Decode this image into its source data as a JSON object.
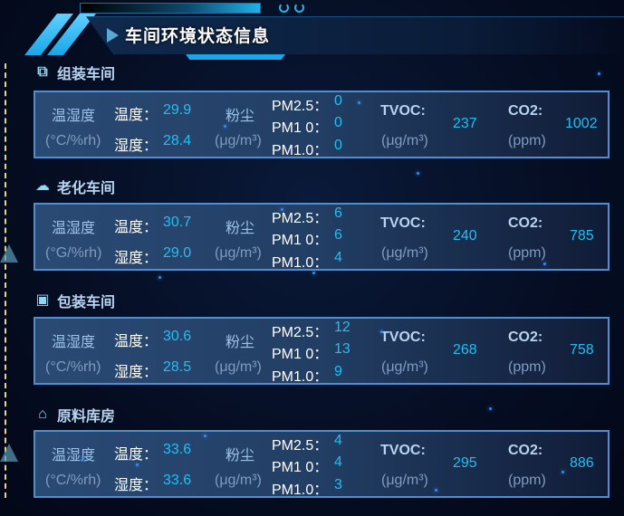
{
  "header": {
    "title": "车间环境状态信息"
  },
  "labels": {
    "temp_humidity": "温湿度",
    "temp": "温度：",
    "humidity": "湿度：",
    "dust": "粉尘",
    "dust_unit": "(μg/m³)",
    "tvoc": "TVOC:",
    "tvoc_unit": "(μg/m³)",
    "co2": "CO2:",
    "co2_unit": "(ppm)",
    "pm25": "PM2.5：",
    "pm10": "PM1 0：",
    "pm1": "PM1.0："
  },
  "workshops": [
    {
      "name": "组装车间",
      "icon": "puzzle-icon",
      "th_unit": "(°C/%rh)",
      "temp": "29.9",
      "humidity": "28.4",
      "pm25": "0",
      "pm10": "0",
      "pm1": "0",
      "tvoc": "237",
      "co2": "1002"
    },
    {
      "name": "老化车间",
      "icon": "cloud-icon",
      "th_unit": "(°G/%rh)",
      "temp": "30.7",
      "humidity": "29.0",
      "pm25": "6",
      "pm10": "6",
      "pm1": "4",
      "tvoc": "240",
      "co2": "785"
    },
    {
      "name": "包装车间",
      "icon": "box-icon",
      "th_unit": "(°C/%rh)",
      "temp": "30.6",
      "humidity": "28.5",
      "pm25": "12",
      "pm10": "13",
      "pm1": "9",
      "tvoc": "268",
      "co2": "758"
    },
    {
      "name": "原料库房",
      "icon": "warehouse-icon",
      "th_unit": "(°C/%rh)",
      "temp": "33.6",
      "humidity": "33.6",
      "pm25": "4",
      "pm10": "4",
      "pm1": "3",
      "tvoc": "295",
      "co2": "886"
    }
  ],
  "colors": {
    "accent": "#1ec0f4",
    "border": "#4d8fd0",
    "label": "#9cc2ea"
  }
}
